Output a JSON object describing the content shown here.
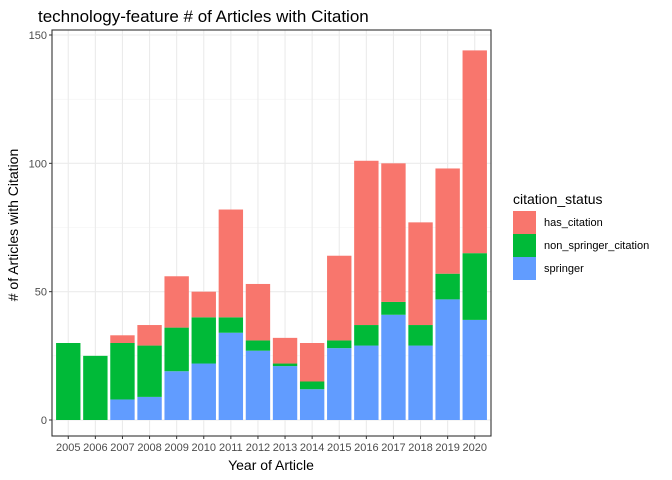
{
  "chart_data": {
    "type": "bar",
    "stacked": true,
    "title": "technology-feature # of Articles with Citation",
    "xlabel": "Year of Article",
    "ylabel": "# of Articles with Citation",
    "ylim": [
      0,
      150
    ],
    "yticks": [
      0,
      50,
      100,
      150
    ],
    "grid": true,
    "legend_position": "right",
    "legend_title": "citation_status",
    "categories": [
      "2005",
      "2006",
      "2007",
      "2008",
      "2009",
      "2010",
      "2011",
      "2012",
      "2013",
      "2014",
      "2015",
      "2016",
      "2017",
      "2018",
      "2019",
      "2020"
    ],
    "series": [
      {
        "name": "springer",
        "color": "#619CFF",
        "values": [
          0,
          0,
          8,
          9,
          19,
          22,
          34,
          27,
          21,
          12,
          28,
          29,
          41,
          29,
          47,
          39
        ]
      },
      {
        "name": "non_springer_citation",
        "color": "#00BA38",
        "values": [
          30,
          25,
          22,
          20,
          17,
          18,
          6,
          4,
          1,
          3,
          3,
          8,
          5,
          8,
          10,
          26
        ]
      },
      {
        "name": "has_citation",
        "color": "#F8766D",
        "values": [
          0,
          0,
          3,
          8,
          20,
          10,
          42,
          22,
          10,
          15,
          33,
          64,
          54,
          40,
          41,
          79
        ]
      }
    ],
    "legend_order": [
      "has_citation",
      "non_springer_citation",
      "springer"
    ]
  }
}
